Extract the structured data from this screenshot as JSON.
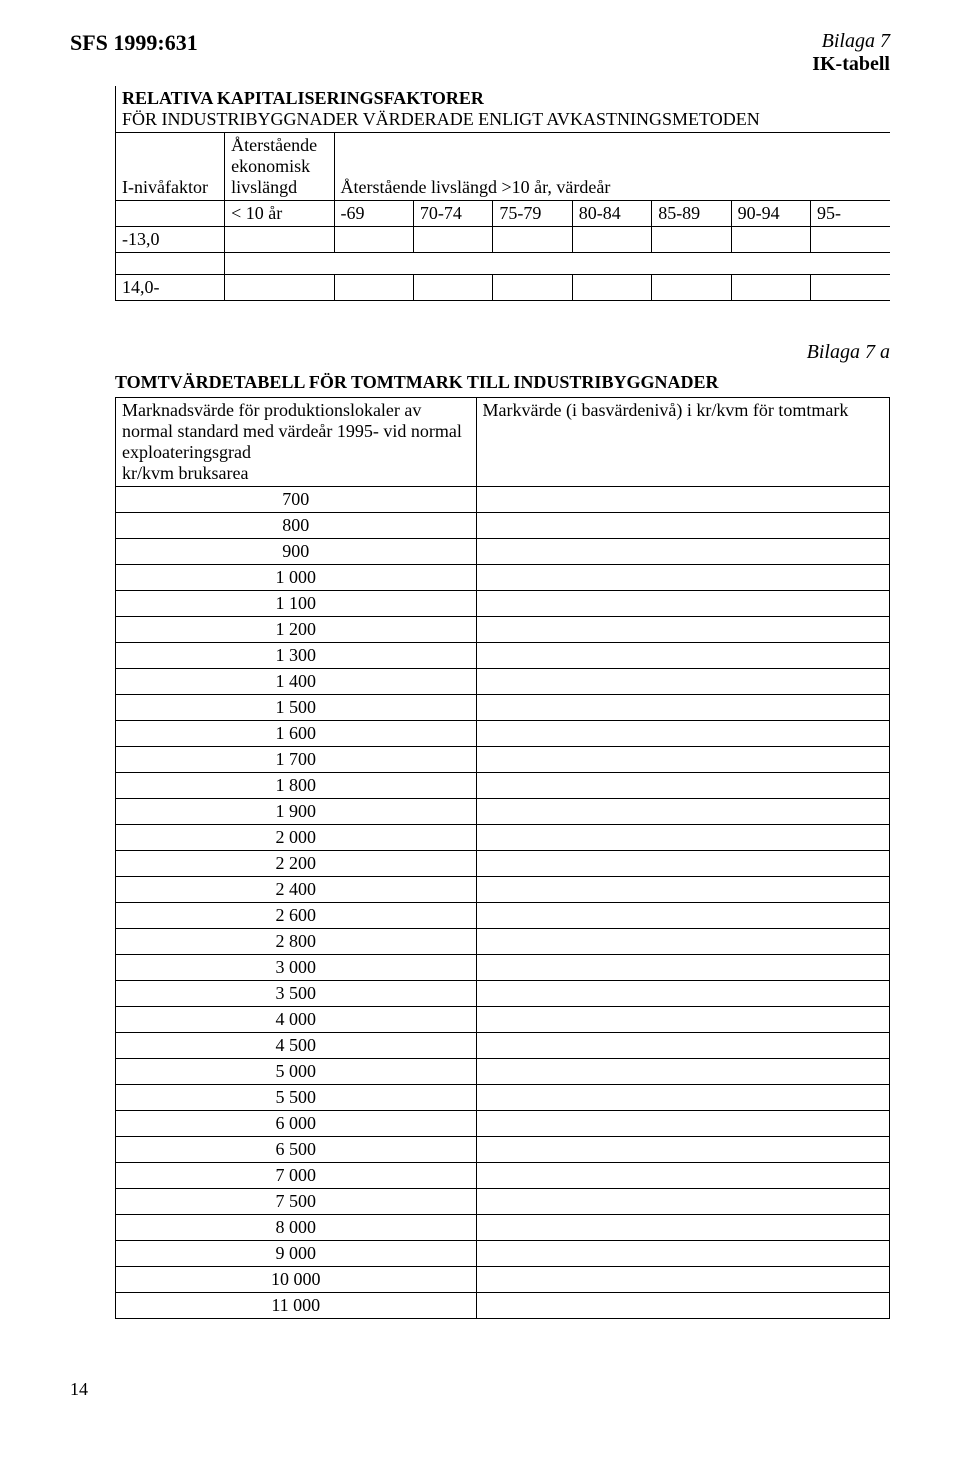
{
  "header": {
    "sfs": "SFS 1999:631",
    "bilaga": "Bilaga 7",
    "ik": "IK-tabell"
  },
  "section1": {
    "title1": "RELATIVA KAPITALISERINGSFAKTORER",
    "title2": "FÖR INDUSTRIBYGGNADER VÄRDERADE ENLIGT AVKASTNINGSMETODEN",
    "col_left": "I-nivåfaktor",
    "col_mid_top": "Återstående\nekonomisk\nlivslängd",
    "col_right_top": "Återstående livslängd >10 år, värdeår",
    "mid_val": "< 10 år",
    "year_cols": [
      "-69",
      "70-74",
      "75-79",
      "80-84",
      "85-89",
      "90-94",
      "95-"
    ],
    "rows": [
      "-13,0",
      "14,0-"
    ]
  },
  "bilaga7a": "Bilaga 7 a",
  "section2": {
    "title": "TOMTVÄRDETABELL FÖR TOMTMARK TILL INDUSTRIBYGGNADER",
    "left_header": "Marknadsvärde för produktionslokaler av normal standard med värdeår 1995- vid normal exploateringsgrad\nkr/kvm bruksarea",
    "right_header": "Markvärde (i basvärdenivå) i kr/kvm för tomtmark",
    "values": [
      "700",
      "800",
      "900",
      "1 000",
      "1 100",
      "1 200",
      "1 300",
      "1 400",
      "1 500",
      "1 600",
      "1 700",
      "1 800",
      "1 900",
      "2 000",
      "2 200",
      "2 400",
      "2 600",
      "2 800",
      "3 000",
      "3 500",
      "4 000",
      "4 500",
      "5 000",
      "5 500",
      "6 000",
      "6 500",
      "7 000",
      "7 500",
      "8 000",
      "9 000",
      "10 000",
      "11 000"
    ]
  },
  "page_number": "14"
}
